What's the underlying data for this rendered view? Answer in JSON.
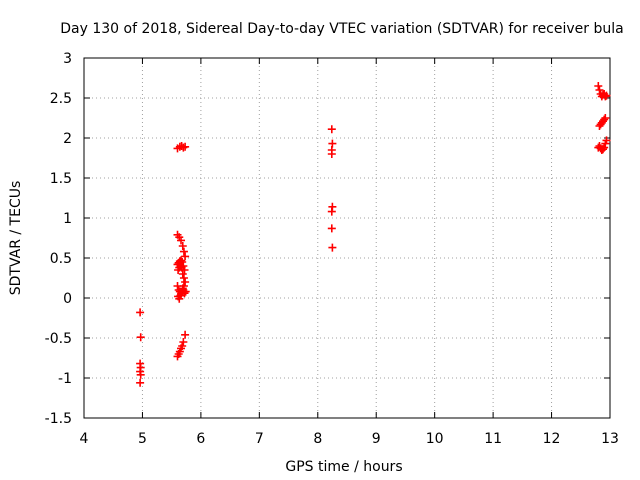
{
  "chart_data": {
    "type": "scatter",
    "title": "Day 130 of 2018, Sidereal Day-to-day VTEC variation (SDTVAR) for receiver bula",
    "xlabel": "GPS time / hours",
    "ylabel": "SDTVAR / TECUs",
    "xlim": [
      4,
      13
    ],
    "ylim": [
      -1.5,
      3
    ],
    "xticks": [
      "4",
      "5",
      "6",
      "7",
      "8",
      "9",
      "10",
      "11",
      "12",
      "13"
    ],
    "yticks": [
      "-1.5",
      "-1",
      "-0.5",
      "0",
      "0.5",
      "1",
      "1.5",
      "2",
      "2.5",
      "3"
    ],
    "grid": true,
    "marker": "+",
    "color": "#ff0000",
    "series": [
      {
        "points": [
          [
            4.96,
            -0.18
          ],
          [
            4.97,
            -0.49
          ],
          [
            4.96,
            -0.82
          ],
          [
            4.97,
            -0.87
          ],
          [
            4.96,
            -0.92
          ],
          [
            4.97,
            -0.96
          ],
          [
            4.96,
            -1.06
          ],
          [
            5.6,
            1.87
          ],
          [
            5.64,
            1.89
          ],
          [
            5.67,
            1.9
          ],
          [
            5.7,
            1.88
          ],
          [
            5.73,
            1.89
          ],
          [
            5.6,
            0.79
          ],
          [
            5.63,
            0.76
          ],
          [
            5.66,
            0.72
          ],
          [
            5.69,
            0.65
          ],
          [
            5.71,
            0.58
          ],
          [
            5.73,
            0.52
          ],
          [
            5.6,
            0.42
          ],
          [
            5.62,
            0.44
          ],
          [
            5.64,
            0.46
          ],
          [
            5.66,
            0.47
          ],
          [
            5.68,
            0.45
          ],
          [
            5.7,
            0.4
          ],
          [
            5.72,
            0.35
          ],
          [
            5.61,
            0.35
          ],
          [
            5.63,
            0.38
          ],
          [
            5.65,
            0.4
          ],
          [
            5.67,
            0.38
          ],
          [
            5.69,
            0.3
          ],
          [
            5.71,
            0.25
          ],
          [
            5.73,
            0.2
          ],
          [
            5.6,
            0.15
          ],
          [
            5.62,
            0.1
          ],
          [
            5.64,
            0.08
          ],
          [
            5.66,
            0.05
          ],
          [
            5.68,
            0.07
          ],
          [
            5.7,
            0.1
          ],
          [
            5.72,
            0.06
          ],
          [
            5.61,
            0.02
          ],
          [
            5.63,
            -0.01
          ],
          [
            5.65,
            0.03
          ],
          [
            5.67,
            0.08
          ],
          [
            5.69,
            0.12
          ],
          [
            5.71,
            0.15
          ],
          [
            5.74,
            0.08
          ],
          [
            5.6,
            -0.73
          ],
          [
            5.62,
            -0.7
          ],
          [
            5.64,
            -0.67
          ],
          [
            5.66,
            -0.63
          ],
          [
            5.68,
            -0.6
          ],
          [
            5.7,
            -0.55
          ],
          [
            5.73,
            -0.46
          ],
          [
            8.24,
            2.11
          ],
          [
            8.25,
            1.93
          ],
          [
            8.24,
            1.85
          ],
          [
            8.24,
            1.8
          ],
          [
            8.25,
            1.14
          ],
          [
            8.24,
            1.08
          ],
          [
            8.24,
            0.87
          ],
          [
            8.25,
            0.63
          ],
          [
            12.8,
            2.65
          ],
          [
            12.82,
            2.6
          ],
          [
            12.84,
            2.55
          ],
          [
            12.86,
            2.52
          ],
          [
            12.88,
            2.54
          ],
          [
            12.9,
            2.55
          ],
          [
            12.92,
            2.52
          ],
          [
            12.94,
            2.53
          ],
          [
            12.82,
            2.15
          ],
          [
            12.84,
            2.17
          ],
          [
            12.86,
            2.19
          ],
          [
            12.88,
            2.21
          ],
          [
            12.9,
            2.23
          ],
          [
            12.92,
            2.25
          ],
          [
            12.8,
            1.88
          ],
          [
            12.82,
            1.9
          ],
          [
            12.84,
            1.87
          ],
          [
            12.86,
            1.85
          ],
          [
            12.88,
            1.86
          ],
          [
            12.9,
            1.88
          ],
          [
            12.92,
            1.93
          ],
          [
            12.94,
            1.97
          ]
        ]
      }
    ]
  }
}
